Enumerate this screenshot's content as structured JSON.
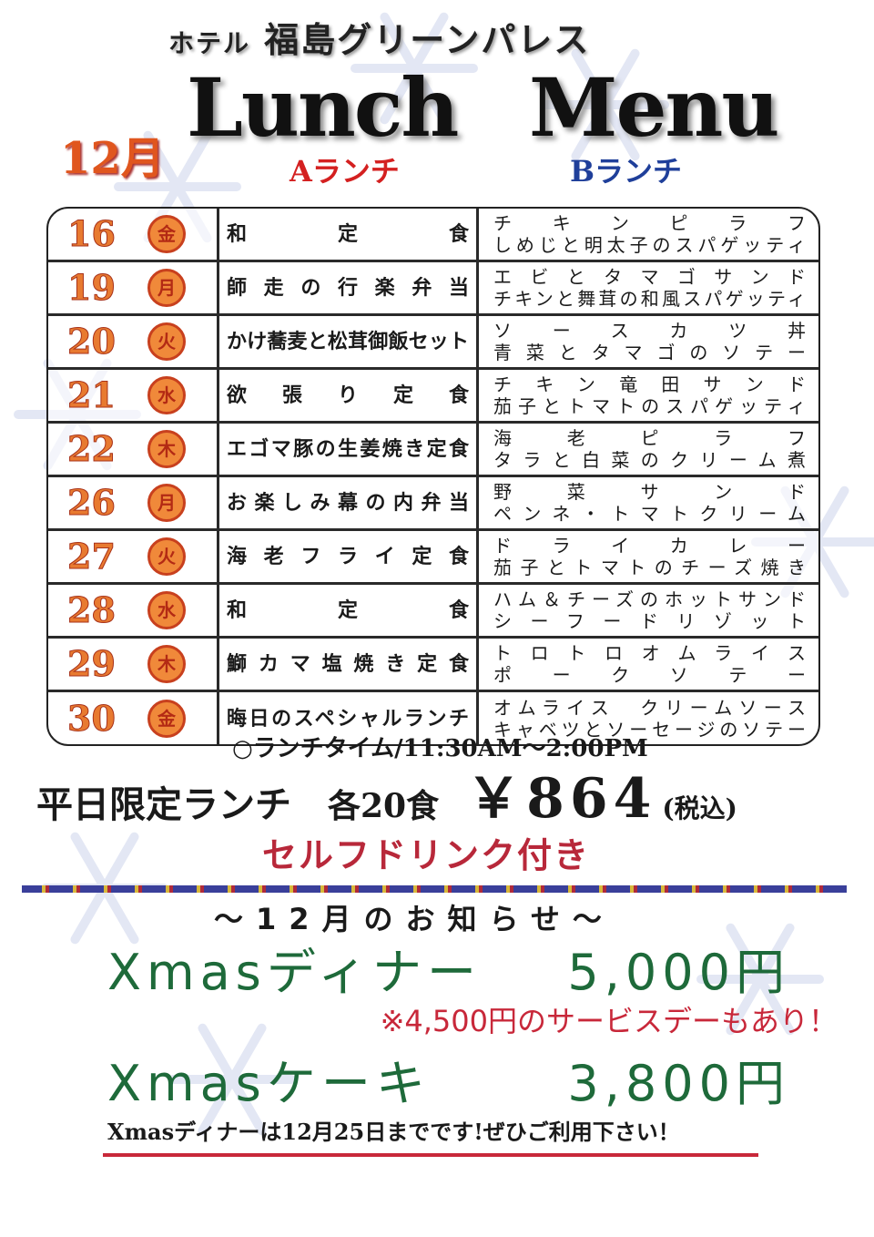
{
  "header": {
    "hotel_prefix": "ホテル",
    "hotel_name": "福島グリーンパレス",
    "title": "Lunch Menu",
    "month": "12月",
    "a_label": "Aランチ",
    "b_label": "Bランチ"
  },
  "colors": {
    "date": "#e87a30",
    "a_label": "#d42020",
    "b_label": "#1f3f9a",
    "xmas": "#1e6a3a",
    "accent_red": "#c8283a"
  },
  "menu": [
    {
      "day": "16",
      "dow": "金",
      "a": "和定食",
      "b1": "チキンピラフ",
      "b2": "しめじと明太子のスパゲッティ"
    },
    {
      "day": "19",
      "dow": "月",
      "a": "師走の行楽弁当",
      "b1": "エビとタマゴサンド",
      "b2": "チキンと舞茸の和風スパゲッティ"
    },
    {
      "day": "20",
      "dow": "火",
      "a": "かけ蕎麦と松茸御飯セット",
      "b1": "ソースカツ丼",
      "b2": "青菜とタマゴのソテー"
    },
    {
      "day": "21",
      "dow": "水",
      "a": "欲張り定食",
      "b1": "チキン竜田サンド",
      "b2": "茄子とトマトのスパゲッティ"
    },
    {
      "day": "22",
      "dow": "木",
      "a": "エゴマ豚の生姜焼き定食",
      "b1": "海老ピラフ",
      "b2": "タラと白菜のクリーム煮"
    },
    {
      "day": "26",
      "dow": "月",
      "a": "お楽しみ幕の内弁当",
      "b1": "野菜サンド",
      "b2": "ペンネ・トマトクリーム"
    },
    {
      "day": "27",
      "dow": "火",
      "a": "海老フライ定食",
      "b1": "ドライカレー",
      "b2": "茄子とトマトのチーズ焼き"
    },
    {
      "day": "28",
      "dow": "水",
      "a": "和定食",
      "b1": "ハム＆チーズのホットサンド",
      "b2": "シーフードリゾット"
    },
    {
      "day": "29",
      "dow": "木",
      "a": "鰤カマ塩焼き定食",
      "b1": "トロトロオムライス",
      "b2": "ポークソテー"
    },
    {
      "day": "30",
      "dow": "金",
      "a": "晦日のスペシャルランチ",
      "b1": "オムライス　クリームソース",
      "b2": "キャベツとソーセージのソテー"
    }
  ],
  "info": {
    "lunch_time": "○ランチタイム/11:30AM～2:00PM",
    "weekday_limited": "平日限定ランチ",
    "count": "各20食",
    "price": "￥864",
    "tax": "(税込)",
    "drink": "セルフドリンク付き"
  },
  "notice": {
    "heading": "～12月のお知らせ～",
    "dinner_label": "Xmasディナー",
    "dinner_price": "5,000円",
    "service_day": "※4,500円のサービスデーもあり！",
    "cake_label": "Xmasケーキ",
    "cake_price": "3,800円",
    "footer": "Xmasディナーは12月25日までです!ぜひご利用下さい！"
  }
}
